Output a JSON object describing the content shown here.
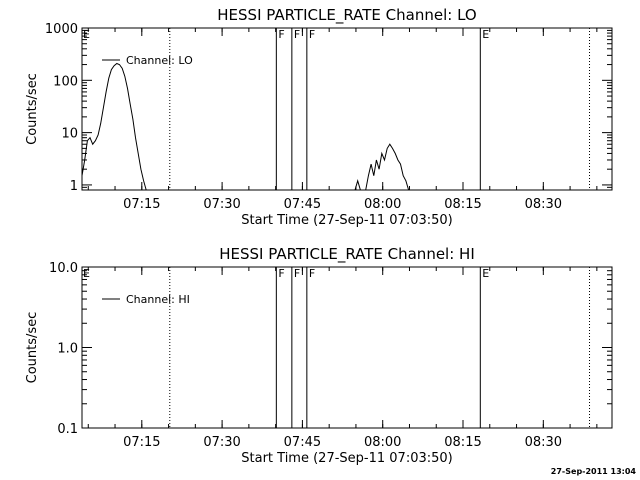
{
  "timestamp": "27-Sep-2011 13:04",
  "time_ticks": [
    {
      "t": 11.17,
      "label": "07:15"
    },
    {
      "t": 26.17,
      "label": "07:30"
    },
    {
      "t": 41.17,
      "label": "07:45"
    },
    {
      "t": 56.17,
      "label": "08:00"
    },
    {
      "t": 71.17,
      "label": "08:15"
    },
    {
      "t": 86.17,
      "label": "08:30"
    }
  ],
  "markers": {
    "dotted": [
      16.4,
      94.8
    ],
    "solid": [
      {
        "t": 36.3,
        "label": "F"
      },
      {
        "t": 39.2,
        "label": "F"
      },
      {
        "t": 42.0,
        "label": "F"
      },
      {
        "t": 74.4,
        "label": "E"
      }
    ],
    "left_label": "E"
  },
  "chart_data": [
    {
      "type": "line",
      "title": "HESSI PARTICLE_RATE Channel: LO",
      "xlabel": "Start Time (27-Sep-11 07:03:50)",
      "ylabel": "Counts/sec",
      "yscale": "log",
      "ylim": [
        0.8,
        1000
      ],
      "yticks": [
        {
          "v": 1,
          "label": "1"
        },
        {
          "v": 10,
          "label": "10"
        },
        {
          "v": 100,
          "label": "100"
        },
        {
          "v": 1000,
          "label": "1000"
        }
      ],
      "xlim": [
        0,
        99
      ],
      "legend": "top-left",
      "series": [
        {
          "name": "Channel: LO",
          "segments": [
            [
              [
                0,
                1.5
              ],
              [
                0.5,
                3
              ],
              [
                1,
                7
              ],
              [
                1.5,
                8
              ],
              [
                2,
                6
              ],
              [
                2.5,
                7
              ],
              [
                3,
                9
              ],
              [
                3.5,
                15
              ],
              [
                4,
                30
              ],
              [
                4.5,
                60
              ],
              [
                5,
                110
              ],
              [
                5.5,
                160
              ],
              [
                6,
                190
              ],
              [
                6.5,
                210
              ],
              [
                7,
                200
              ],
              [
                7.5,
                170
              ],
              [
                8,
                120
              ],
              [
                8.5,
                70
              ],
              [
                9,
                35
              ],
              [
                9.5,
                18
              ],
              [
                10,
                8
              ],
              [
                10.5,
                4
              ],
              [
                11,
                2
              ],
              [
                11.5,
                1.2
              ],
              [
                12,
                0.7
              ]
            ],
            [
              [
                51,
                0.7
              ],
              [
                51.5,
                1.2
              ],
              [
                52,
                0.7
              ]
            ],
            [
              [
                53,
                0.7
              ],
              [
                53.5,
                1.5
              ],
              [
                54,
                2.5
              ],
              [
                54.5,
                1.5
              ],
              [
                55,
                3
              ],
              [
                55.5,
                2
              ],
              [
                56,
                4
              ],
              [
                56.5,
                3
              ],
              [
                57,
                5
              ],
              [
                57.5,
                6
              ],
              [
                58,
                5
              ],
              [
                58.5,
                4
              ],
              [
                59,
                3
              ],
              [
                59.5,
                2.5
              ],
              [
                60,
                1.5
              ],
              [
                60.5,
                1.2
              ],
              [
                61,
                0.7
              ]
            ]
          ]
        }
      ]
    },
    {
      "type": "line",
      "title": "HESSI PARTICLE_RATE Channel: HI",
      "xlabel": "Start Time (27-Sep-11 07:03:50)",
      "ylabel": "Counts/sec",
      "yscale": "log",
      "ylim": [
        0.1,
        10
      ],
      "yticks": [
        {
          "v": 0.1,
          "label": "0.1"
        },
        {
          "v": 1,
          "label": "1.0"
        },
        {
          "v": 10,
          "label": "10.0"
        }
      ],
      "xlim": [
        0,
        99
      ],
      "legend": "top-left",
      "series": [
        {
          "name": "Channel: HI",
          "segments": []
        }
      ]
    }
  ]
}
